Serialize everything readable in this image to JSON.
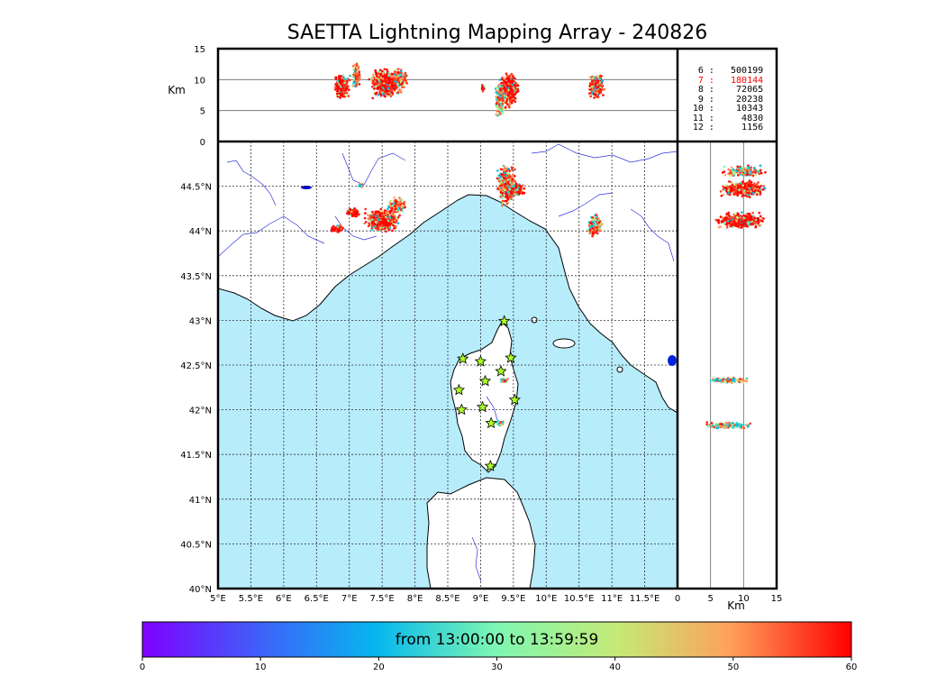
{
  "title": "SAETTA Lightning Mapping Array - 240826",
  "colors": {
    "sea": "#b7ecfb",
    "land": "#ffffff",
    "river": "#3333dd",
    "station": "#aaff22"
  },
  "icons": {
    "station": "star-icon"
  },
  "legend": [
    {
      "n": "6",
      "count": "500199",
      "highlight": false
    },
    {
      "n": "7",
      "count": "180144",
      "highlight": true
    },
    {
      "n": "8",
      "count": "72065",
      "highlight": false
    },
    {
      "n": "9",
      "count": "20238",
      "highlight": false
    },
    {
      "n": "10",
      "count": "10343",
      "highlight": false
    },
    {
      "n": "11",
      "count": "4830",
      "highlight": false
    },
    {
      "n": "12",
      "count": "1156",
      "highlight": false
    }
  ],
  "altitude_axis": {
    "label": "Km",
    "ticks": [
      "0",
      "5",
      "10",
      "15"
    ],
    "range": [
      0,
      15
    ]
  },
  "map": {
    "lon_range": [
      5,
      12
    ],
    "lat_range": [
      40,
      45
    ],
    "lon_ticks": [
      "5°E",
      "5.5°E",
      "6°E",
      "6.5°E",
      "7°E",
      "7.5°E",
      "8°E",
      "8.5°E",
      "9°E",
      "9.5°E",
      "10°E",
      "10.5°E",
      "11°E",
      "11.5°E"
    ],
    "lat_ticks": [
      "40°N",
      "40.5°N",
      "41°N",
      "41.5°N",
      "42°N",
      "42.5°N",
      "43°N",
      "43.5°N",
      "44°N",
      "44.5°N"
    ]
  },
  "colorbar": {
    "label": "from 13:00:00 to 13:59:59",
    "ticks": [
      "0",
      "10",
      "20",
      "30",
      "40",
      "50",
      "60"
    ],
    "range": [
      0,
      60
    ]
  },
  "stations": [
    {
      "lon": 9.36,
      "lat": 42.99
    },
    {
      "lon": 8.73,
      "lat": 42.57
    },
    {
      "lon": 9.0,
      "lat": 42.54
    },
    {
      "lon": 9.46,
      "lat": 42.58
    },
    {
      "lon": 9.31,
      "lat": 42.43
    },
    {
      "lon": 9.07,
      "lat": 42.32
    },
    {
      "lon": 8.67,
      "lat": 42.22
    },
    {
      "lon": 9.52,
      "lat": 42.11
    },
    {
      "lon": 9.03,
      "lat": 42.03
    },
    {
      "lon": 8.71,
      "lat": 42.0
    },
    {
      "lon": 9.16,
      "lat": 41.85
    },
    {
      "lon": 9.15,
      "lat": 41.37
    }
  ]
}
